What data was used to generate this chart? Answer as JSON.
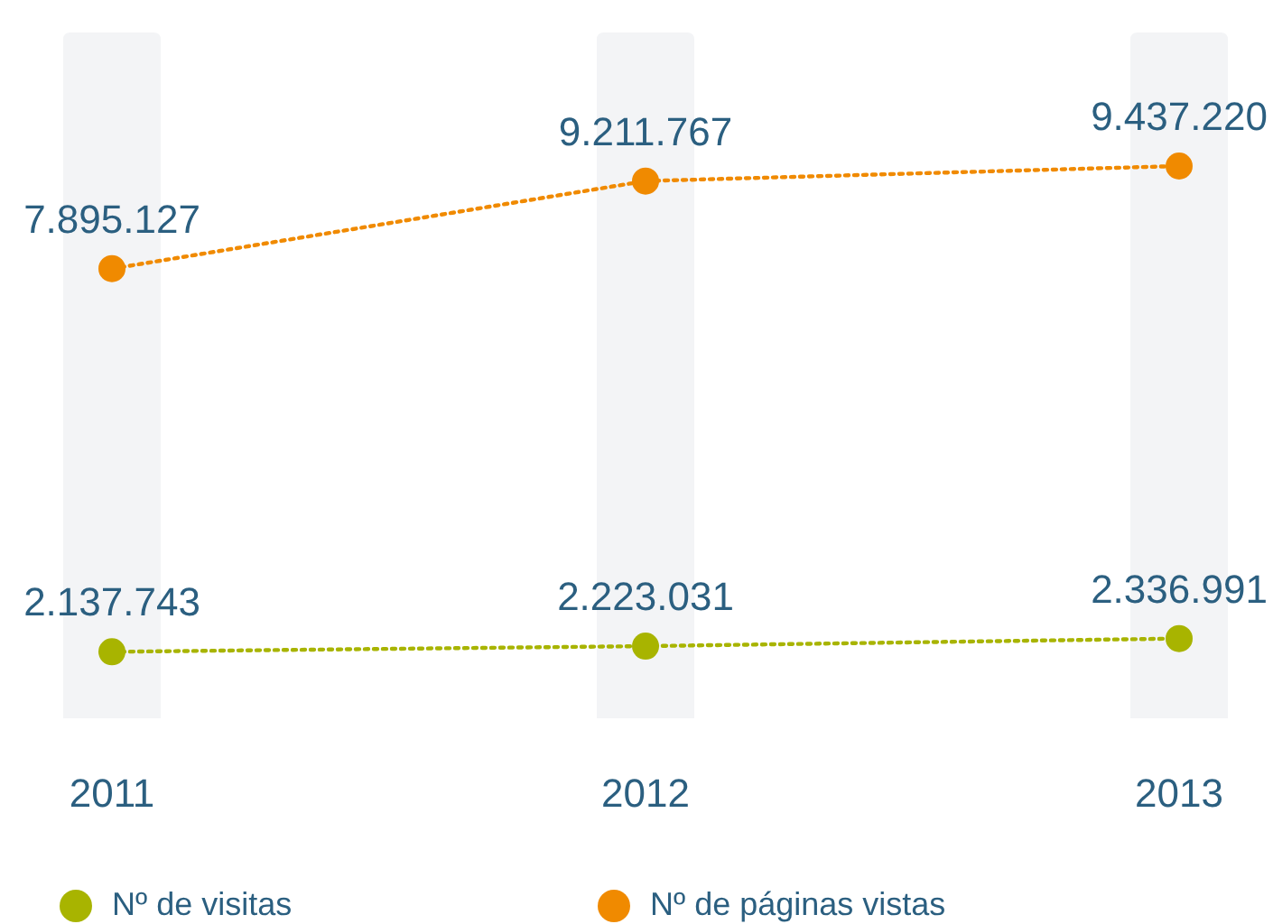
{
  "chart_data": {
    "type": "line",
    "categories": [
      "2011",
      "2012",
      "2013"
    ],
    "series": [
      {
        "name": "Nº de visitas",
        "color": "#a8b400",
        "values": [
          2137743,
          2223031,
          2336991
        ],
        "value_labels": [
          "2.137.743",
          "2.223.031",
          "2.336.991"
        ]
      },
      {
        "name": "Nº de páginas vistas",
        "color": "#f08a00",
        "values": [
          7895127,
          9211767,
          9437220
        ],
        "value_labels": [
          "7.895.127",
          "9.211.767",
          "9.437.220"
        ]
      }
    ],
    "marker": "circle",
    "line_style": "dotted",
    "legend": "bottom",
    "tick_labels": "x"
  }
}
